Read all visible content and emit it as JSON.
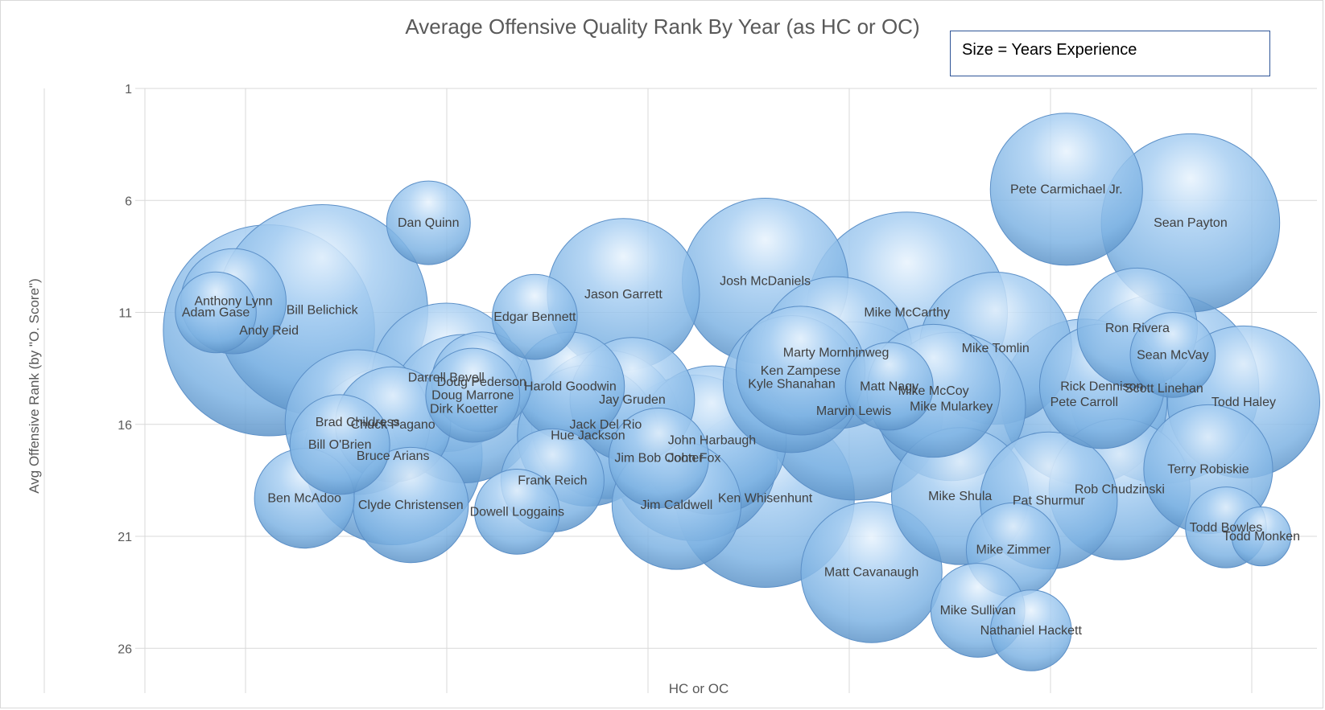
{
  "chart_data": {
    "type": "bubble",
    "title": "Average Offensive Quality Rank By Year (as HC or OC)",
    "annotation": "Size = Years Experience",
    "xlabel": "HC or OC",
    "ylabel": "Avg Offensive Rank (by \"O. Score\")",
    "y_reversed": true,
    "ylim": [
      1,
      28
    ],
    "yticks": [
      1,
      6,
      11,
      16,
      21,
      26
    ],
    "xlim": [
      0,
      13
    ],
    "grid": true,
    "bubble_color": "#8fbfea",
    "points": [
      {
        "label": "Anthony Lynn",
        "x": 1.0,
        "y": 10.5,
        "size": 4.5
      },
      {
        "label": "Adam Gase",
        "x": 0.8,
        "y": 11.0,
        "size": 2.5
      },
      {
        "label": "Andy Reid",
        "x": 1.4,
        "y": 11.8,
        "size": 20
      },
      {
        "label": "Bill Belichick",
        "x": 2.0,
        "y": 10.9,
        "size": 20
      },
      {
        "label": "Ben McAdoo",
        "x": 1.8,
        "y": 19.3,
        "size": 4
      },
      {
        "label": "Brad Childress",
        "x": 2.4,
        "y": 15.9,
        "size": 9
      },
      {
        "label": "Bill O'Brien",
        "x": 2.2,
        "y": 16.9,
        "size": 4
      },
      {
        "label": "Bruce Arians",
        "x": 2.8,
        "y": 17.4,
        "size": 14
      },
      {
        "label": "Chuck Pagano",
        "x": 2.8,
        "y": 16.0,
        "size": 5.5
      },
      {
        "label": "Clyde Christensen",
        "x": 3.0,
        "y": 19.6,
        "size": 5.5
      },
      {
        "label": "Dan Quinn",
        "x": 3.2,
        "y": 7.0,
        "size": 2.7
      },
      {
        "label": "Darrell Bevell",
        "x": 3.4,
        "y": 13.9,
        "size": 9.5
      },
      {
        "label": "Dirk Koetter",
        "x": 3.6,
        "y": 15.3,
        "size": 9.5
      },
      {
        "label": "Doug Pederson",
        "x": 3.8,
        "y": 14.1,
        "size": 4
      },
      {
        "label": "Doug Marrone",
        "x": 3.7,
        "y": 14.7,
        "size": 3.5
      },
      {
        "label": "Edgar Bennett",
        "x": 4.4,
        "y": 11.2,
        "size": 2.8
      },
      {
        "label": "Dowell Loggains",
        "x": 4.2,
        "y": 19.9,
        "size": 2.8
      },
      {
        "label": "Harold Goodwin",
        "x": 4.8,
        "y": 14.3,
        "size": 4.8
      },
      {
        "label": "Frank Reich",
        "x": 4.6,
        "y": 18.5,
        "size": 4.3
      },
      {
        "label": "Jason Garrett",
        "x": 5.4,
        "y": 10.2,
        "size": 10
      },
      {
        "label": "Jay Gruden",
        "x": 5.5,
        "y": 14.9,
        "size": 6.5
      },
      {
        "label": "Jack Del Rio",
        "x": 5.2,
        "y": 16.0,
        "size": 9.5
      },
      {
        "label": "Hue Jackson",
        "x": 5.0,
        "y": 16.5,
        "size": 8.5
      },
      {
        "label": "Jim Bob Cooter",
        "x": 5.8,
        "y": 17.5,
        "size": 4
      },
      {
        "label": "Jim Caldwell",
        "x": 6.0,
        "y": 19.6,
        "size": 7
      },
      {
        "label": "John Fox",
        "x": 6.2,
        "y": 17.5,
        "size": 12
      },
      {
        "label": "John Harbaugh",
        "x": 6.4,
        "y": 16.7,
        "size": 9.5
      },
      {
        "label": "Ken Whisenhunt",
        "x": 7.0,
        "y": 19.3,
        "size": 14
      },
      {
        "label": "Josh McDaniels",
        "x": 7.0,
        "y": 9.6,
        "size": 12
      },
      {
        "label": "Ken Zampese",
        "x": 7.4,
        "y": 13.6,
        "size": 7
      },
      {
        "label": "Kyle Shanahan",
        "x": 7.3,
        "y": 14.2,
        "size": 8
      },
      {
        "label": "Marty Mornhinweg",
        "x": 7.8,
        "y": 12.8,
        "size": 10
      },
      {
        "label": "Marvin Lewis",
        "x": 8.0,
        "y": 15.4,
        "size": 14
      },
      {
        "label": "Mike McCarthy",
        "x": 8.6,
        "y": 11.0,
        "size": 18
      },
      {
        "label": "Matt Nagy",
        "x": 8.4,
        "y": 14.3,
        "size": 3
      },
      {
        "label": "Mike McCoy",
        "x": 8.9,
        "y": 14.5,
        "size": 7.5
      },
      {
        "label": "Mike Mularkey",
        "x": 9.1,
        "y": 15.2,
        "size": 9.5
      },
      {
        "label": "Mike Tomlin",
        "x": 9.6,
        "y": 12.6,
        "size": 10
      },
      {
        "label": "Mike Shula",
        "x": 9.2,
        "y": 19.2,
        "size": 8
      },
      {
        "label": "Matt Cavanaugh",
        "x": 8.2,
        "y": 22.6,
        "size": 8.5
      },
      {
        "label": "Mike Zimmer",
        "x": 9.8,
        "y": 21.6,
        "size": 3.5
      },
      {
        "label": "Mike Sullivan",
        "x": 9.4,
        "y": 24.3,
        "size": 3.5
      },
      {
        "label": "Nathaniel Hackett",
        "x": 10.0,
        "y": 25.2,
        "size": 2.5
      },
      {
        "label": "Pete Carmichael Jr.",
        "x": 10.4,
        "y": 5.5,
        "size": 10
      },
      {
        "label": "Pete Carroll",
        "x": 10.6,
        "y": 15.0,
        "size": 12
      },
      {
        "label": "Rick Dennison",
        "x": 10.8,
        "y": 14.3,
        "size": 6.5
      },
      {
        "label": "Pat Shurmur",
        "x": 10.2,
        "y": 19.4,
        "size": 8
      },
      {
        "label": "Rob Chudzinski",
        "x": 11.0,
        "y": 18.9,
        "size": 8.5
      },
      {
        "label": "Ron Rivera",
        "x": 11.2,
        "y": 11.7,
        "size": 6
      },
      {
        "label": "Sean McVay",
        "x": 11.6,
        "y": 12.9,
        "size": 2.8
      },
      {
        "label": "Scott Linehan",
        "x": 11.5,
        "y": 14.4,
        "size": 16
      },
      {
        "label": "Sean Payton",
        "x": 11.8,
        "y": 7.0,
        "size": 14
      },
      {
        "label": "Todd Haley",
        "x": 12.4,
        "y": 15.0,
        "size": 10
      },
      {
        "label": "Terry Robiskie",
        "x": 12.0,
        "y": 18.0,
        "size": 7
      },
      {
        "label": "Todd Bowles",
        "x": 12.2,
        "y": 20.6,
        "size": 2.5
      },
      {
        "label": "Todd Monken",
        "x": 12.6,
        "y": 21.0,
        "size": 1.2
      }
    ]
  }
}
